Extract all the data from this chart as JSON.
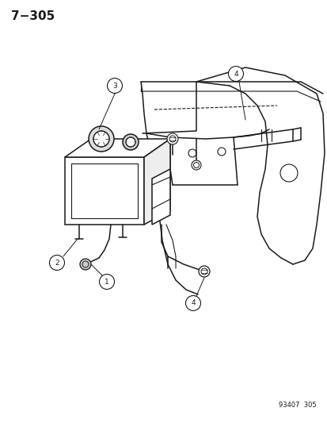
{
  "title": "7−305",
  "part_number": "93407  305",
  "background_color": "#ffffff",
  "line_color": "#1a1a1a",
  "figsize": [
    4.14,
    5.33
  ],
  "dpi": 100
}
